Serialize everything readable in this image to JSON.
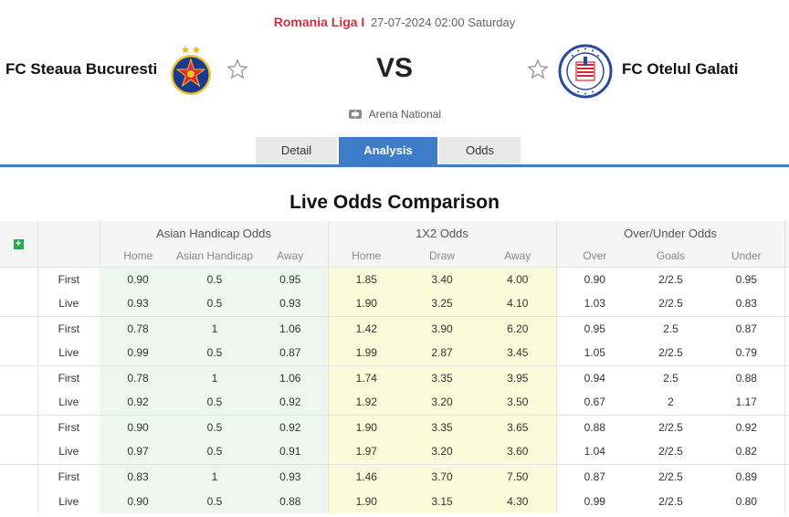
{
  "match": {
    "league": "Romania Liga I",
    "datetime": "27-07-2024 02:00 Saturday",
    "home_team": "FC Steaua Bucuresti",
    "away_team": "FC Otelul Galati",
    "vs_label": "VS",
    "venue": "Arena National"
  },
  "tabs": [
    {
      "label": "Detail",
      "active": false
    },
    {
      "label": "Analysis",
      "active": true
    },
    {
      "label": "Odds",
      "active": false
    }
  ],
  "section_title": "Live Odds Comparison",
  "table": {
    "groups": {
      "asian": "Asian Handicap Odds",
      "x12": "1X2 Odds",
      "ou": "Over/Under Odds"
    },
    "sub_headers": {
      "asian": [
        "Home",
        "Asian Handicap",
        "Away"
      ],
      "x12": [
        "Home",
        "Draw",
        "Away"
      ],
      "ou": [
        "Over",
        "Goals",
        "Under"
      ]
    },
    "expand_icon": "+",
    "rows": [
      {
        "type": "First",
        "ah": [
          "0.90",
          "0.5",
          "0.95"
        ],
        "x12": [
          "1.85",
          "3.40",
          "4.00"
        ],
        "ou": [
          "0.90",
          "2/2.5",
          "0.95"
        ]
      },
      {
        "type": "Live",
        "ah": [
          "0.93",
          "0.5",
          "0.93"
        ],
        "x12": [
          "1.90",
          "3.25",
          "4.10"
        ],
        "ou": [
          "1.03",
          "2/2.5",
          "0.83"
        ]
      },
      {
        "type": "First",
        "ah": [
          "0.78",
          "1",
          "1.06"
        ],
        "x12": [
          "1.42",
          "3.90",
          "6.20"
        ],
        "ou": [
          "0.95",
          "2.5",
          "0.87"
        ]
      },
      {
        "type": "Live",
        "ah": [
          "0.99",
          "0.5",
          "0.87"
        ],
        "x12": [
          "1.99",
          "2.87",
          "3.45"
        ],
        "ou": [
          "1.05",
          "2/2.5",
          "0.79"
        ]
      },
      {
        "type": "First",
        "ah": [
          "0.78",
          "1",
          "1.06"
        ],
        "x12": [
          "1.74",
          "3.35",
          "3.95"
        ],
        "ou": [
          "0.94",
          "2.5",
          "0.88"
        ]
      },
      {
        "type": "Live",
        "ah": [
          "0.92",
          "0.5",
          "0.92"
        ],
        "x12": [
          "1.92",
          "3.20",
          "3.50"
        ],
        "ou": [
          "0.67",
          "2",
          "1.17"
        ]
      },
      {
        "type": "First",
        "ah": [
          "0.90",
          "0.5",
          "0.92"
        ],
        "x12": [
          "1.90",
          "3.35",
          "3.65"
        ],
        "ou": [
          "0.88",
          "2/2.5",
          "0.92"
        ]
      },
      {
        "type": "Live",
        "ah": [
          "0.97",
          "0.5",
          "0.91"
        ],
        "x12": [
          "1.97",
          "3.20",
          "3.60"
        ],
        "ou": [
          "1.04",
          "2/2.5",
          "0.82"
        ]
      },
      {
        "type": "First",
        "ah": [
          "0.83",
          "1",
          "0.93"
        ],
        "x12": [
          "1.46",
          "3.70",
          "7.50"
        ],
        "ou": [
          "0.87",
          "2/2.5",
          "0.89"
        ]
      },
      {
        "type": "Live",
        "ah": [
          "0.90",
          "0.5",
          "0.88"
        ],
        "x12": [
          "1.90",
          "3.15",
          "4.30"
        ],
        "ou": [
          "0.99",
          "2/2.5",
          "0.80"
        ]
      }
    ]
  },
  "icons": {
    "home_logo": "steaua-crest-icon",
    "away_logo": "otelul-crest-icon",
    "favorite": "star-outline-icon",
    "venue": "stadium-icon"
  },
  "colors": {
    "accent_blue": "#3d7cc9",
    "league_red": "#c8343c",
    "handicap_bg": "#eef7ee",
    "x12_bg": "#fcfbd9",
    "plus_green": "#2aa84a"
  }
}
